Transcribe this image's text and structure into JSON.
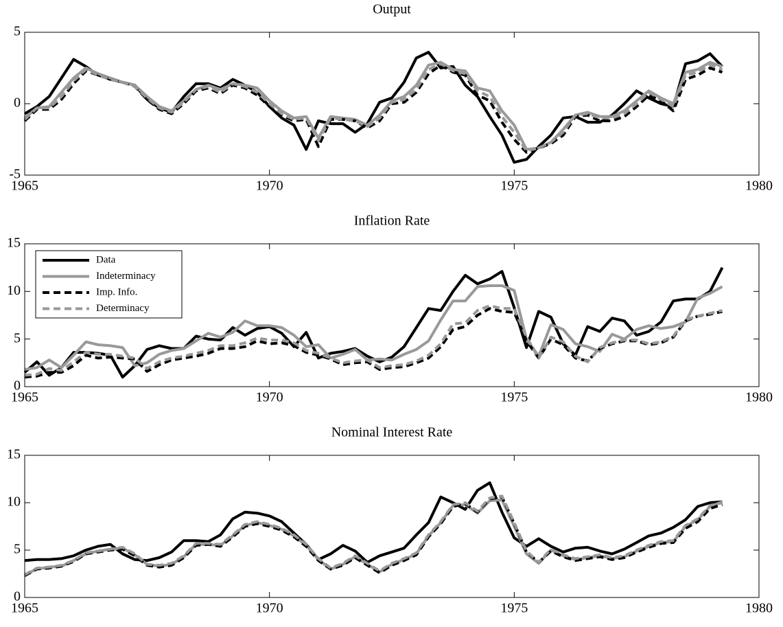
{
  "chart_data": [
    {
      "type": "line",
      "title": "Output",
      "x": [
        1965,
        1965.25,
        1965.5,
        1965.75,
        1966,
        1966.25,
        1966.5,
        1966.75,
        1967,
        1967.25,
        1967.5,
        1967.75,
        1968,
        1968.25,
        1968.5,
        1968.75,
        1969,
        1969.25,
        1969.5,
        1969.75,
        1970,
        1970.25,
        1970.5,
        1970.75,
        1971,
        1971.25,
        1971.5,
        1971.75,
        1972,
        1972.25,
        1972.5,
        1972.75,
        1973,
        1973.25,
        1973.5,
        1973.75,
        1974,
        1974.25,
        1974.5,
        1974.75,
        1975,
        1975.25,
        1975.5,
        1975.75,
        1976,
        1976.25,
        1976.5,
        1976.75,
        1977,
        1977.25,
        1977.5,
        1977.75,
        1978,
        1978.25,
        1978.5,
        1978.75,
        1979,
        1979.25
      ],
      "series": [
        {
          "color": "#000000",
          "dash": false,
          "values": [
            -0.7,
            -0.2,
            0.5,
            1.8,
            3.1,
            2.6,
            2.0,
            1.7,
            1.5,
            1.3,
            0.3,
            -0.3,
            -0.6,
            0.5,
            1.4,
            1.4,
            1.1,
            1.7,
            1.3,
            0.8,
            -0.2,
            -1.0,
            -1.5,
            -3.2,
            -1.2,
            -1.4,
            -1.4,
            -2.0,
            -1.4,
            0.1,
            0.4,
            1.5,
            3.2,
            3.6,
            2.5,
            2.6,
            1.3,
            0.5,
            -0.9,
            -2.2,
            -4.1,
            -3.9,
            -3.0,
            -2.2,
            -1.0,
            -0.9,
            -1.3,
            -1.3,
            -0.8,
            0.0,
            0.9,
            0.4,
            0.0,
            -0.2,
            2.8,
            3.0,
            3.5,
            2.6
          ]
        },
        {
          "color": "#999999",
          "dash": false,
          "values": [
            -1.0,
            -0.3,
            -0.2,
            0.8,
            1.8,
            2.5,
            2.1,
            1.8,
            1.5,
            1.3,
            0.5,
            -0.2,
            -0.5,
            0.2,
            1.0,
            1.3,
            1.0,
            1.4,
            1.3,
            1.1,
            0.2,
            -0.5,
            -1.0,
            -0.9,
            -2.4,
            -0.9,
            -1.0,
            -1.1,
            -1.5,
            -0.8,
            0.2,
            0.5,
            1.3,
            2.7,
            2.9,
            2.4,
            2.3,
            1.1,
            0.9,
            -0.5,
            -1.5,
            -3.2,
            -3.1,
            -2.7,
            -1.8,
            -0.8,
            -0.6,
            -0.9,
            -0.9,
            -0.5,
            0.2,
            0.9,
            0.4,
            0.0,
            2.2,
            2.4,
            2.9,
            2.6
          ]
        },
        {
          "color": "#000000",
          "dash": true,
          "values": [
            -1.2,
            -0.4,
            -0.4,
            0.3,
            1.4,
            2.3,
            2.0,
            1.7,
            1.5,
            1.2,
            0.3,
            -0.4,
            -0.7,
            0.0,
            0.9,
            1.1,
            0.7,
            1.3,
            1.1,
            0.6,
            -0.2,
            -0.8,
            -1.2,
            -1.1,
            -3.0,
            -1.1,
            -1.1,
            -1.2,
            -1.7,
            -1.2,
            0.0,
            0.1,
            0.8,
            2.1,
            2.7,
            2.2,
            2.0,
            0.6,
            0.2,
            -1.3,
            -2.5,
            -3.4,
            -3.1,
            -2.8,
            -2.2,
            -0.9,
            -0.8,
            -1.2,
            -1.2,
            -0.9,
            -0.2,
            0.6,
            0.2,
            -0.5,
            1.7,
            2.0,
            2.5,
            2.2
          ]
        },
        {
          "color": "#999999",
          "dash": true,
          "values": [
            -1.1,
            -0.3,
            -0.3,
            0.5,
            1.6,
            2.4,
            2.0,
            1.7,
            1.5,
            1.2,
            0.4,
            -0.3,
            -0.6,
            0.1,
            1.0,
            1.2,
            0.8,
            1.4,
            1.2,
            0.8,
            0.0,
            -0.7,
            -1.1,
            -1.0,
            -2.6,
            -1.0,
            -1.1,
            -1.2,
            -1.6,
            -1.0,
            0.1,
            0.3,
            1.0,
            2.4,
            2.8,
            2.3,
            2.1,
            0.9,
            0.5,
            -0.9,
            -2.0,
            -3.3,
            -3.1,
            -2.7,
            -2.0,
            -0.8,
            -0.7,
            -1.0,
            -1.0,
            -0.7,
            0.0,
            0.8,
            0.3,
            -0.2,
            2.0,
            2.2,
            2.7,
            2.4
          ]
        }
      ],
      "xlim": [
        1965,
        1980
      ],
      "xticks": [
        1965,
        1970,
        1975,
        1980
      ],
      "ylim": [
        -5,
        5
      ],
      "yticks": [
        -5,
        0,
        5
      ]
    },
    {
      "type": "line",
      "title": "Inflation Rate",
      "x": [
        1965,
        1965.25,
        1965.5,
        1965.75,
        1966,
        1966.25,
        1966.5,
        1966.75,
        1967,
        1967.25,
        1967.5,
        1967.75,
        1968,
        1968.25,
        1968.5,
        1968.75,
        1969,
        1969.25,
        1969.5,
        1969.75,
        1970,
        1970.25,
        1970.5,
        1970.75,
        1971,
        1971.25,
        1971.5,
        1971.75,
        1972,
        1972.25,
        1972.5,
        1972.75,
        1973,
        1973.25,
        1973.5,
        1973.75,
        1974,
        1974.25,
        1974.5,
        1974.75,
        1975,
        1975.25,
        1975.5,
        1975.75,
        1976,
        1976.25,
        1976.5,
        1976.75,
        1977,
        1977.25,
        1977.5,
        1977.75,
        1978,
        1978.25,
        1978.5,
        1978.75,
        1979,
        1979.25
      ],
      "series": [
        {
          "name": "Data",
          "color": "#000000",
          "dash": false,
          "values": [
            1.5,
            2.6,
            1.2,
            2.0,
            3.6,
            3.6,
            3.5,
            3.3,
            1.0,
            2.2,
            3.9,
            4.3,
            4.0,
            4.0,
            5.3,
            5.0,
            4.9,
            6.2,
            5.4,
            6.1,
            6.3,
            5.6,
            4.2,
            5.7,
            3.0,
            3.5,
            3.7,
            4.0,
            3.2,
            2.6,
            3.1,
            4.2,
            6.2,
            8.2,
            8.0,
            10.0,
            11.7,
            10.8,
            11.3,
            12.1,
            8.3,
            4.1,
            7.9,
            7.3,
            4.5,
            3.3,
            6.3,
            5.8,
            7.2,
            6.9,
            5.4,
            5.8,
            6.8,
            9.0,
            9.2,
            9.2,
            10.0,
            12.5
          ]
        },
        {
          "name": "Indeterminacy",
          "color": "#999999",
          "dash": false,
          "values": [
            1.8,
            2.0,
            2.8,
            2.0,
            3.3,
            4.7,
            4.4,
            4.3,
            4.1,
            2.2,
            2.5,
            3.4,
            3.8,
            4.0,
            4.8,
            5.6,
            5.2,
            5.7,
            6.9,
            6.4,
            6.4,
            6.2,
            5.4,
            4.2,
            4.4,
            3.0,
            3.4,
            3.9,
            2.8,
            2.9,
            2.8,
            3.4,
            3.9,
            4.8,
            7.0,
            9.0,
            9.0,
            10.5,
            10.6,
            10.6,
            10.1,
            5.0,
            3.2,
            6.5,
            6.0,
            4.5,
            4.2,
            3.7,
            5.5,
            5.0,
            6.0,
            6.4,
            6.1,
            6.3,
            6.8,
            9.3,
            9.8,
            10.5
          ]
        },
        {
          "name": "Imp. Info.",
          "color": "#000000",
          "dash": true,
          "values": [
            1.0,
            1.1,
            1.5,
            1.5,
            2.2,
            3.3,
            3.0,
            3.1,
            3.0,
            2.9,
            1.6,
            2.3,
            2.8,
            3.0,
            3.2,
            3.5,
            4.0,
            4.0,
            4.2,
            4.8,
            4.5,
            4.6,
            4.3,
            3.6,
            3.3,
            2.9,
            2.3,
            2.5,
            2.6,
            1.8,
            2.0,
            2.1,
            2.5,
            3.0,
            4.2,
            6.0,
            6.3,
            7.5,
            8.2,
            7.9,
            7.8,
            4.8,
            3.0,
            5.0,
            4.4,
            3.0,
            2.7,
            4.0,
            4.5,
            4.8,
            4.8,
            4.4,
            4.6,
            5.2,
            6.9,
            7.4,
            7.6,
            7.9
          ]
        },
        {
          "name": "Determinacy",
          "color": "#999999",
          "dash": true,
          "values": [
            1.2,
            1.3,
            1.9,
            1.7,
            2.6,
            3.6,
            3.4,
            3.4,
            3.2,
            3.0,
            1.9,
            2.6,
            3.0,
            3.2,
            3.5,
            3.8,
            4.3,
            4.3,
            4.6,
            5.1,
            4.9,
            4.9,
            4.6,
            3.8,
            3.5,
            3.0,
            2.5,
            2.7,
            2.8,
            2.0,
            2.2,
            2.3,
            2.7,
            3.3,
            4.5,
            6.6,
            6.7,
            8.0,
            8.5,
            8.2,
            8.2,
            5.2,
            3.0,
            5.2,
            4.7,
            3.2,
            2.6,
            4.1,
            4.6,
            4.9,
            4.9,
            4.5,
            4.7,
            5.3,
            7.0,
            7.4,
            7.7,
            8.0
          ]
        }
      ],
      "xlim": [
        1965,
        1980
      ],
      "xticks": [
        1965,
        1970,
        1975,
        1980
      ],
      "ylim": [
        0,
        15
      ],
      "yticks": [
        0,
        5,
        10,
        15
      ],
      "legend": "upper left"
    },
    {
      "type": "line",
      "title": "Nominal Interest Rate",
      "x": [
        1965,
        1965.25,
        1965.5,
        1965.75,
        1966,
        1966.25,
        1966.5,
        1966.75,
        1967,
        1967.25,
        1967.5,
        1967.75,
        1968,
        1968.25,
        1968.5,
        1968.75,
        1969,
        1969.25,
        1969.5,
        1969.75,
        1970,
        1970.25,
        1970.5,
        1970.75,
        1971,
        1971.25,
        1971.5,
        1971.75,
        1972,
        1972.25,
        1972.5,
        1972.75,
        1973,
        1973.25,
        1973.5,
        1973.75,
        1974,
        1974.25,
        1974.5,
        1974.75,
        1975,
        1975.25,
        1975.5,
        1975.75,
        1976,
        1976.25,
        1976.5,
        1976.75,
        1977,
        1977.25,
        1977.5,
        1977.75,
        1978,
        1978.25,
        1978.5,
        1978.75,
        1979,
        1979.25
      ],
      "series": [
        {
          "color": "#000000",
          "dash": false,
          "values": [
            3.9,
            4.0,
            4.0,
            4.1,
            4.4,
            5.0,
            5.4,
            5.6,
            4.6,
            4.0,
            3.9,
            4.2,
            4.8,
            6.0,
            6.0,
            5.9,
            6.6,
            8.3,
            9.0,
            8.9,
            8.6,
            8.0,
            6.8,
            5.6,
            4.0,
            4.6,
            5.5,
            4.9,
            3.7,
            4.4,
            4.8,
            5.2,
            6.6,
            7.9,
            10.6,
            10.0,
            9.3,
            11.3,
            12.1,
            9.0,
            6.3,
            5.4,
            6.2,
            5.4,
            4.8,
            5.2,
            5.3,
            4.9,
            4.6,
            5.1,
            5.8,
            6.5,
            6.8,
            7.4,
            8.2,
            9.6,
            10.0,
            10.1
          ]
        },
        {
          "color": "#999999",
          "dash": false,
          "values": [
            2.4,
            3.0,
            3.2,
            3.3,
            3.9,
            4.6,
            4.9,
            5.1,
            5.2,
            4.5,
            3.5,
            3.3,
            3.5,
            4.3,
            5.6,
            5.6,
            5.5,
            6.5,
            7.6,
            7.9,
            7.6,
            7.2,
            6.5,
            5.5,
            4.0,
            3.0,
            3.5,
            4.3,
            3.5,
            2.7,
            3.5,
            4.0,
            4.6,
            6.5,
            7.9,
            9.7,
            9.8,
            8.9,
            10.2,
            10.3,
            7.5,
            4.6,
            3.6,
            5.0,
            4.4,
            4.0,
            4.2,
            4.4,
            4.1,
            4.3,
            4.9,
            5.4,
            5.8,
            5.9,
            7.5,
            8.2,
            9.6,
            10.1
          ]
        },
        {
          "color": "#000000",
          "dash": true,
          "values": [
            2.3,
            3.0,
            3.1,
            3.3,
            3.8,
            4.6,
            4.8,
            5.0,
            5.1,
            4.4,
            3.4,
            3.2,
            3.4,
            4.2,
            5.5,
            5.6,
            5.4,
            6.4,
            7.5,
            7.8,
            7.5,
            7.1,
            6.4,
            5.4,
            3.9,
            3.0,
            3.4,
            4.2,
            3.4,
            2.6,
            3.4,
            3.9,
            4.5,
            6.4,
            7.8,
            9.6,
            9.9,
            9.0,
            10.4,
            10.6,
            7.8,
            4.8,
            3.7,
            4.9,
            4.3,
            3.9,
            4.1,
            4.3,
            4.0,
            4.2,
            4.8,
            5.3,
            5.7,
            5.8,
            7.3,
            8.0,
            9.4,
            9.8
          ]
        },
        {
          "color": "#999999",
          "dash": true,
          "values": [
            2.4,
            3.1,
            3.2,
            3.4,
            3.9,
            4.7,
            4.9,
            5.1,
            5.3,
            4.6,
            3.5,
            3.4,
            3.6,
            4.4,
            5.7,
            5.7,
            5.6,
            6.6,
            7.7,
            8.0,
            7.7,
            7.3,
            6.6,
            5.6,
            4.1,
            3.1,
            3.6,
            4.4,
            3.6,
            2.8,
            3.6,
            4.1,
            4.7,
            6.6,
            8.0,
            9.8,
            10.0,
            9.1,
            10.5,
            10.7,
            7.9,
            4.9,
            3.7,
            5.1,
            4.5,
            4.1,
            4.3,
            4.5,
            4.2,
            4.4,
            5.0,
            5.5,
            5.9,
            6.0,
            7.6,
            8.3,
            9.7,
            10.0
          ]
        }
      ],
      "xlim": [
        1965,
        1980
      ],
      "xticks": [
        1965,
        1970,
        1975,
        1980
      ],
      "ylim": [
        0,
        15
      ],
      "yticks": [
        0,
        5,
        10,
        15
      ]
    }
  ]
}
